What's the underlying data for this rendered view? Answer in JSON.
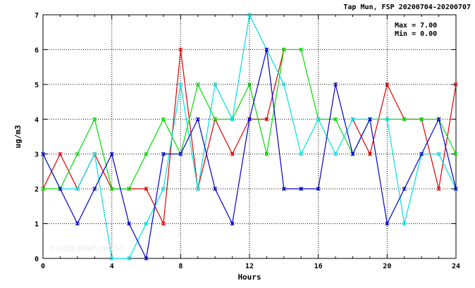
{
  "chart_data": {
    "type": "line",
    "title": "Tap Mun, FSP 20200704-20200707",
    "xlabel": "Hours",
    "ylabel": "ug/m3",
    "xlim": [
      0,
      24
    ],
    "ylim": [
      0,
      7
    ],
    "x_ticks": [
      0,
      4,
      8,
      12,
      16,
      20,
      24
    ],
    "y_ticks": [
      0,
      1,
      2,
      3,
      4,
      5,
      6,
      7
    ],
    "grid": true,
    "grid_style": "dotted",
    "stats": {
      "max": "Max = 7.00",
      "min": "Min = 0.00"
    },
    "watermark": "© 2025 ENVF, HKUST",
    "x": [
      0,
      1,
      2,
      3,
      4,
      5,
      6,
      7,
      8,
      9,
      10,
      11,
      12,
      13,
      14,
      15,
      16,
      17,
      18,
      19,
      20,
      21,
      22,
      23,
      24
    ],
    "series": [
      {
        "color": "#dd0000",
        "values": [
          2,
          3,
          2,
          3,
          2,
          2,
          2,
          1,
          6,
          2,
          4,
          3,
          4,
          4,
          6,
          null,
          null,
          null,
          4,
          3,
          5,
          4,
          4,
          2,
          5
        ]
      },
      {
        "color": "#00dd00",
        "values": [
          2,
          2,
          3,
          4,
          2,
          2,
          3,
          4,
          3,
          5,
          4,
          4,
          5,
          3,
          6,
          6,
          4,
          4,
          3,
          4,
          4,
          4,
          4,
          4,
          3
        ]
      },
      {
        "color": "#00e0e0",
        "values": [
          3,
          2,
          2,
          3,
          0,
          0,
          1,
          2,
          5,
          2,
          5,
          4,
          7,
          6,
          5,
          3,
          4,
          3,
          4,
          4,
          4,
          1,
          3,
          3,
          2
        ]
      },
      {
        "color": "#0000cc",
        "values": [
          3,
          2,
          1,
          2,
          3,
          1,
          0,
          3,
          3,
          4,
          2,
          1,
          4,
          6,
          2,
          2,
          2,
          5,
          3,
          4,
          1,
          2,
          3,
          4,
          2
        ]
      }
    ]
  }
}
